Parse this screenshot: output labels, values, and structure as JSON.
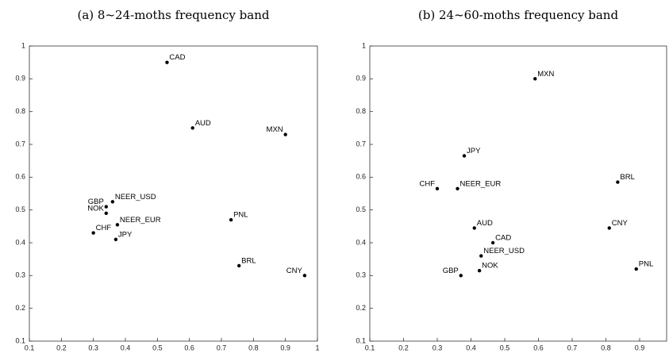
{
  "chart_data": [
    {
      "type": "scatter",
      "title": "(a) 8~24-moths frequency band",
      "color": "#000000",
      "labels": [
        "CAD",
        "AUD",
        "MXN",
        "NEER_USD",
        "GBP",
        "NOK",
        "NEER_EUR",
        "CHF",
        "JPY",
        "PNL",
        "BRL",
        "CNY"
      ],
      "x": [
        0.53,
        0.61,
        0.9,
        0.36,
        0.34,
        0.34,
        0.375,
        0.3,
        0.37,
        0.73,
        0.755,
        0.96
      ],
      "y": [
        0.95,
        0.75,
        0.73,
        0.525,
        0.51,
        0.49,
        0.455,
        0.43,
        0.41,
        0.47,
        0.33,
        0.3
      ],
      "xlim": [
        0.1,
        1
      ],
      "xticks": [
        0.1,
        0.2,
        0.3,
        0.4,
        0.5,
        0.6,
        0.7,
        0.8,
        0.9,
        1
      ],
      "ylim": [
        0.1,
        1
      ],
      "yticks": [
        0.1,
        0.2,
        0.3,
        0.4,
        0.5,
        0.6,
        0.7,
        0.8,
        0.9,
        1
      ]
    },
    {
      "type": "scatter",
      "title": "(b) 24~60-moths frequency band",
      "color": "#000000",
      "labels": [
        "MXN",
        "JPY",
        "CHF",
        "NEER_EUR",
        "BRL",
        "AUD",
        "CNY",
        "CAD",
        "NEER_USD",
        "NOK",
        "GBP",
        "PNL"
      ],
      "x": [
        0.59,
        0.38,
        0.3,
        0.36,
        0.835,
        0.41,
        0.81,
        0.465,
        0.43,
        0.425,
        0.37,
        0.89
      ],
      "y": [
        0.9,
        0.665,
        0.565,
        0.565,
        0.585,
        0.445,
        0.445,
        0.4,
        0.36,
        0.315,
        0.3,
        0.32
      ],
      "xlim": [
        0.1,
        0.98
      ],
      "xticks": [
        0.1,
        0.2,
        0.3,
        0.4,
        0.5,
        0.6,
        0.7,
        0.8,
        0.9
      ],
      "ylim": [
        0.1,
        1
      ],
      "yticks": [
        0.1,
        0.2,
        0.3,
        0.4,
        0.5,
        0.6,
        0.7,
        0.8,
        0.9,
        1
      ]
    }
  ]
}
